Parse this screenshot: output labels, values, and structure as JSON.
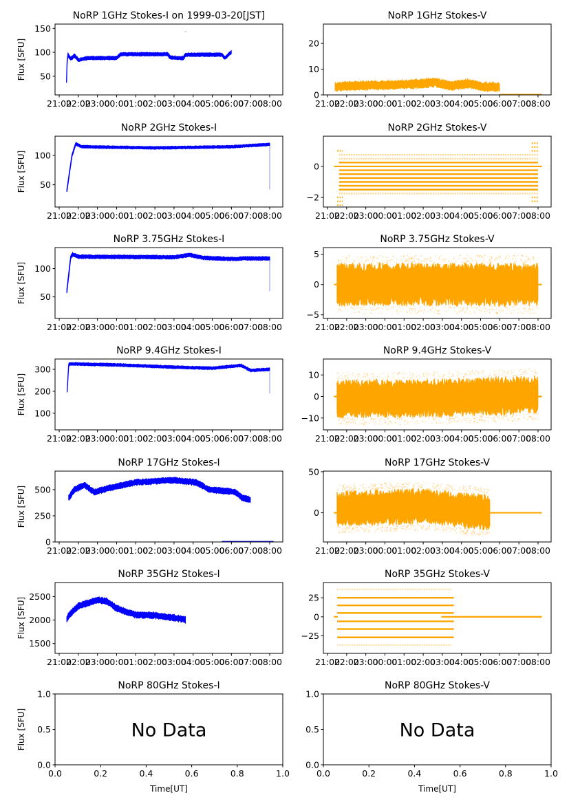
{
  "figure": {
    "colors": {
      "stokes_i": "#0000ff",
      "stokes_v": "#ffa500"
    },
    "time_ticks": [
      "21:00",
      "22:00",
      "23:00",
      "00:00",
      "01:00",
      "02:00",
      "03:00",
      "04:00",
      "05:00",
      "06:00",
      "07:00",
      "08:00"
    ],
    "time_xlim": [
      "20:47",
      "08:41"
    ]
  },
  "chart_data": [
    {
      "type": "scatter",
      "title": "NoRP 1GHz Stokes-I on 1999-03-20[JST]",
      "ylabel": "Flux [SFU]",
      "ylim": [
        11,
        159
      ],
      "yticks": [
        50,
        100,
        150
      ],
      "color": "#0000ff",
      "series": [
        {
          "kind": "band",
          "spread": 4,
          "points": [
            [
              "21:23",
              40
            ],
            [
              "21:24",
              70
            ],
            [
              "21:27",
              95
            ],
            [
              "21:36",
              86
            ],
            [
              "21:48",
              93
            ],
            [
              "22:00",
              84
            ],
            [
              "22:30",
              88
            ],
            [
              "00:00",
              88
            ],
            [
              "00:12",
              96
            ],
            [
              "02:40",
              96
            ],
            [
              "02:48",
              89
            ],
            [
              "03:30",
              88
            ],
            [
              "03:36",
              95
            ],
            [
              "05:30",
              95
            ],
            [
              "05:40",
              88
            ],
            [
              "06:00",
              101
            ]
          ]
        },
        {
          "kind": "points",
          "points": [
            [
              "03:36",
              143
            ]
          ]
        }
      ]
    },
    {
      "type": "scatter",
      "title": "NoRP 1GHz Stokes-V",
      "ylabel": "",
      "ylim": [
        0,
        27.5
      ],
      "yticks": [
        0,
        10,
        20
      ],
      "color": "#ffa500",
      "series": [
        {
          "kind": "band",
          "spread": 1.8,
          "points": [
            [
              "21:24",
              3
            ],
            [
              "22:00",
              3.5
            ],
            [
              "01:00",
              4
            ],
            [
              "02:40",
              4.8
            ],
            [
              "03:30",
              3.5
            ],
            [
              "04:20",
              4.5
            ],
            [
              "05:00",
              3.3
            ],
            [
              "06:00",
              3
            ]
          ]
        },
        {
          "kind": "line",
          "value": 0.1,
          "from": "06:00",
          "to": "08:12"
        }
      ]
    },
    {
      "type": "scatter",
      "title": "NoRP 2GHz Stokes-I",
      "ylabel": "Flux [SFU]",
      "ylim": [
        12,
        133
      ],
      "yticks": [
        50,
        100
      ],
      "color": "#0000ff",
      "series": [
        {
          "kind": "band",
          "spread": 2.5,
          "points": [
            [
              "21:24",
              40
            ],
            [
              "21:40",
              100
            ],
            [
              "21:52",
              120
            ],
            [
              "22:10",
              115
            ],
            [
              "02:00",
              113
            ],
            [
              "06:00",
              115
            ],
            [
              "08:00",
              119
            ]
          ]
        },
        {
          "kind": "line",
          "value": 80,
          "from": "08:00",
          "to": "08:00",
          "light": true,
          "span": [
            42,
            118
          ]
        }
      ]
    },
    {
      "type": "scatter",
      "title": "NoRP 2GHz Stokes-V",
      "ylabel": "",
      "ylim": [
        -2.62,
        1.95
      ],
      "yticks": [
        -2,
        0
      ],
      "color": "#ffa500",
      "series": [
        {
          "kind": "levels",
          "from": "21:36",
          "to": "08:00",
          "values": [
            0.25,
            -0.25,
            -0.5,
            -0.75,
            -1,
            -1.25,
            -1.5
          ],
          "opacity": 1
        },
        {
          "kind": "levels",
          "from": "21:36",
          "to": "08:00",
          "values": [
            0.5,
            0.75,
            -1.75
          ],
          "opacity": 0.45
        },
        {
          "kind": "levels",
          "from": "21:30",
          "to": "21:48",
          "values": [
            1,
            -2,
            -2.25,
            -2.5
          ],
          "opacity": 0.8
        },
        {
          "kind": "levels",
          "from": "07:40",
          "to": "08:00",
          "values": [
            1,
            1.25,
            1.5,
            -2,
            -2.25
          ],
          "opacity": 0.8
        },
        {
          "kind": "line",
          "value": 0,
          "from": "21:20",
          "to": "08:12"
        }
      ]
    },
    {
      "type": "scatter",
      "title": "NoRP 3.75GHz Stokes-I",
      "ylabel": "Flux [SFU]",
      "ylim": [
        12,
        137
      ],
      "yticks": [
        50,
        100
      ],
      "color": "#0000ff",
      "series": [
        {
          "kind": "band",
          "spread": 3.5,
          "points": [
            [
              "21:24",
              60
            ],
            [
              "21:36",
              120
            ],
            [
              "21:42",
              125
            ],
            [
              "22:00",
              121
            ],
            [
              "03:00",
              120
            ],
            [
              "03:50",
              124
            ],
            [
              "04:30",
              119
            ],
            [
              "06:00",
              117
            ],
            [
              "07:00",
              118
            ],
            [
              "08:00",
              118
            ]
          ]
        },
        {
          "kind": "line",
          "value": 88,
          "from": "08:00",
          "to": "08:00",
          "light": true,
          "span": [
            60,
            118
          ]
        }
      ]
    },
    {
      "type": "scatter",
      "title": "NoRP 3.75GHz Stokes-V",
      "ylabel": "",
      "ylim": [
        -5.6,
        6.1
      ],
      "yticks": [
        -5,
        0,
        5
      ],
      "color": "#ffa500",
      "series": [
        {
          "kind": "band",
          "spread": 3.6,
          "scatter": true,
          "points": [
            [
              "21:30",
              0
            ],
            [
              "08:00",
              0
            ]
          ]
        },
        {
          "kind": "line",
          "value": 0,
          "from": "21:20",
          "to": "08:12"
        }
      ]
    },
    {
      "type": "scatter",
      "title": "NoRP 9.4GHz Stokes-I",
      "ylabel": "Flux [SFU]",
      "ylim": [
        24,
        347
      ],
      "yticks": [
        100,
        200,
        300
      ],
      "color": "#0000ff",
      "series": [
        {
          "kind": "band",
          "spread": 7,
          "points": [
            [
              "21:25",
              200
            ],
            [
              "21:30",
              325
            ],
            [
              "00:00",
              320
            ],
            [
              "03:00",
              310
            ],
            [
              "05:00",
              305
            ],
            [
              "06:30",
              318
            ],
            [
              "07:00",
              295
            ],
            [
              "08:00",
              300
            ]
          ]
        },
        {
          "kind": "line",
          "value": 250,
          "from": "08:00",
          "to": "08:00",
          "light": true,
          "span": [
            190,
            310
          ]
        }
      ]
    },
    {
      "type": "scatter",
      "title": "NoRP 9.4GHz Stokes-V",
      "ylabel": "",
      "ylim": [
        -15.5,
        17.4
      ],
      "yticks": [
        -10,
        0,
        10
      ],
      "color": "#ffa500",
      "series": [
        {
          "kind": "band",
          "spread": 9,
          "scatter": true,
          "points": [
            [
              "21:30",
              -1
            ],
            [
              "02:00",
              -1
            ],
            [
              "08:00",
              1
            ]
          ]
        },
        {
          "kind": "line",
          "value": 0,
          "from": "21:20",
          "to": "08:12"
        }
      ]
    },
    {
      "type": "scatter",
      "title": "NoRP 17GHz Stokes-I",
      "ylabel": "Flux [SFU]",
      "ylim": [
        0,
        677
      ],
      "yticks": [
        0,
        250,
        500
      ],
      "color": "#0000ff",
      "series": [
        {
          "kind": "band",
          "spread": 30,
          "points": [
            [
              "21:30",
              420
            ],
            [
              "21:48",
              500
            ],
            [
              "22:20",
              545
            ],
            [
              "22:50",
              475
            ],
            [
              "23:30",
              510
            ],
            [
              "01:00",
              570
            ],
            [
              "03:00",
              590
            ],
            [
              "04:10",
              570
            ],
            [
              "04:50",
              500
            ],
            [
              "06:10",
              480
            ],
            [
              "06:35",
              420
            ],
            [
              "07:00",
              405
            ]
          ]
        },
        {
          "kind": "line",
          "value": 2,
          "from": "05:30",
          "to": "08:12"
        }
      ]
    },
    {
      "type": "scatter",
      "title": "NoRP 17GHz Stokes-V",
      "ylabel": "",
      "ylim": [
        -35.6,
        50.8
      ],
      "yticks": [
        0,
        50
      ],
      "color": "#ffa500",
      "series": [
        {
          "kind": "band",
          "spread": 22,
          "scatter": true,
          "points": [
            [
              "21:30",
              5
            ],
            [
              "02:00",
              8
            ],
            [
              "05:30",
              0
            ]
          ]
        },
        {
          "kind": "line",
          "value": 0,
          "from": "21:20",
          "to": "21:30"
        },
        {
          "kind": "line",
          "value": 0,
          "from": "05:30",
          "to": "08:12"
        }
      ]
    },
    {
      "type": "scatter",
      "title": "NoRP 35GHz Stokes-I",
      "ylabel": "Flux [SFU]",
      "ylim": [
        1290,
        2800
      ],
      "yticks": [
        1500,
        2000,
        2500
      ],
      "color": "#0000ff",
      "series": [
        {
          "kind": "band",
          "spread": 70,
          "points": [
            [
              "21:24",
              2020
            ],
            [
              "21:30",
              2100
            ],
            [
              "22:00",
              2300
            ],
            [
              "23:00",
              2430
            ],
            [
              "23:30",
              2400
            ],
            [
              "00:00",
              2250
            ],
            [
              "01:00",
              2110
            ],
            [
              "02:00",
              2100
            ],
            [
              "03:00",
              2050
            ],
            [
              "03:36",
              2010
            ]
          ]
        }
      ]
    },
    {
      "type": "scatter",
      "title": "NoRP 35GHz Stokes-V",
      "ylabel": "",
      "ylim": [
        -48,
        45
      ],
      "yticks": [
        -25,
        0,
        25
      ],
      "color": "#ffa500",
      "series": [
        {
          "kind": "levels",
          "from": "21:30",
          "to": "03:36",
          "values": [
            25,
            15,
            5,
            -6,
            -16,
            -27
          ],
          "opacity": 1
        },
        {
          "kind": "levels",
          "from": "21:30",
          "to": "03:30",
          "values": [
            36,
            -37
          ],
          "opacity": 0.35
        },
        {
          "kind": "line",
          "value": 0,
          "from": "02:57",
          "to": "08:12"
        },
        {
          "kind": "line",
          "value": 0,
          "from": "21:20",
          "to": "21:32"
        }
      ]
    },
    {
      "type": "empty",
      "title": "NoRP 80GHz Stokes-I",
      "ylabel": "Flux [SFU]",
      "xlabel": "Time[UT]",
      "ylim": [
        0,
        1
      ],
      "xlim": [
        0,
        1
      ],
      "yticks": [
        "0.0",
        "0.5",
        "1.0"
      ],
      "xticks": [
        "0.0",
        "0.2",
        "0.4",
        "0.6",
        "0.8",
        "1.0"
      ],
      "annotation": "No Data"
    },
    {
      "type": "empty",
      "title": "NoRP 80GHz Stokes-V",
      "ylabel": "",
      "xlabel": "Time[UT]",
      "ylim": [
        0,
        1
      ],
      "xlim": [
        0,
        1
      ],
      "yticks": [
        "0.0",
        "0.5",
        "1.0"
      ],
      "xticks": [
        "0.0",
        "0.2",
        "0.4",
        "0.6",
        "0.8",
        "1.0"
      ],
      "annotation": "No Data"
    }
  ]
}
